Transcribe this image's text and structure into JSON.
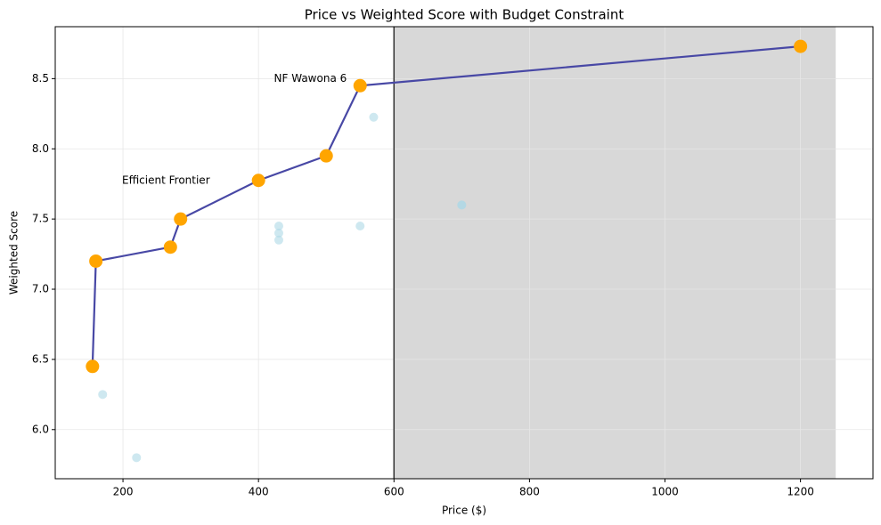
{
  "chart_data": {
    "type": "scatter",
    "title": "Price vs Weighted Score with Budget Constraint",
    "x_label": "Price ($)",
    "y_label": "Weighted Score",
    "annotations": [
      "Efficient Frontier",
      "NF Wawona 6"
    ],
    "xlim": [
      100,
      1307
    ],
    "ylim": [
      5.65,
      8.87
    ],
    "xticks": [
      200,
      400,
      600,
      800,
      1000,
      1200
    ],
    "yticks": [
      {
        "value": 6,
        "label": "6.0"
      },
      6.5,
      {
        "value": 7,
        "label": "7.0"
      },
      7.5,
      {
        "value": 8,
        "label": "8.0"
      },
      8.5
    ],
    "grid": true,
    "budget_line": 600,
    "budget_line_color": "#333333",
    "excluded_region": [
      600,
      1252
    ],
    "excluded_region_color": "#d8d8d8",
    "series": [
      {
        "color": "#add8e6",
        "x": [
          170,
          220,
          430,
          430,
          430,
          550,
          570,
          700,
          700
        ],
        "values": [
          6.25,
          5.8,
          7.45,
          7.4,
          7.35,
          7.45,
          8.225,
          7.6,
          7.6
        ]
      },
      {
        "color": "#ffa500",
        "line_color": "#4848a5",
        "x": [
          155,
          160,
          270,
          285,
          400,
          500,
          550,
          1200
        ],
        "values": [
          6.45,
          7.2,
          7.3,
          7.5,
          7.775,
          7.95,
          8.45,
          8.73
        ]
      }
    ]
  }
}
